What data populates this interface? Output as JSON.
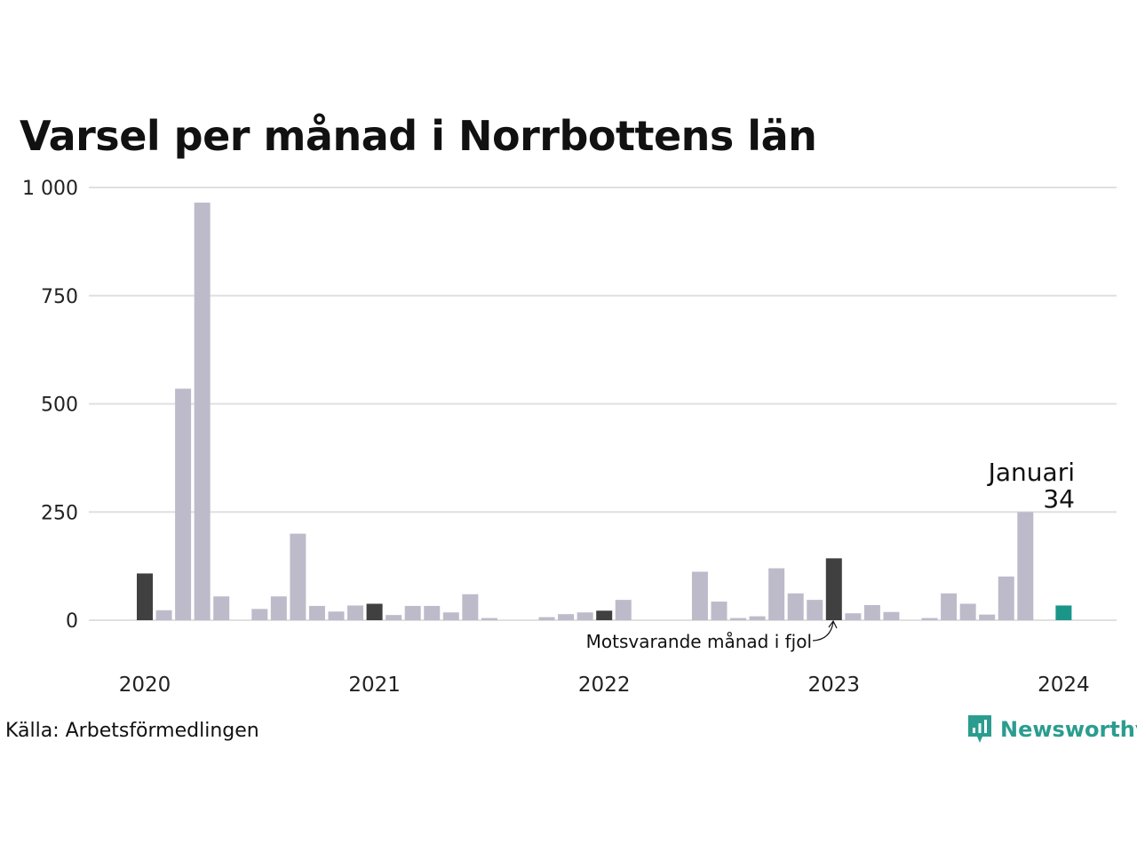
{
  "title": "Varsel per månad i Norrbottens län",
  "source": "Källa: Arbetsförmedlingen",
  "brand": "Newsworthy",
  "annotation": {
    "month_label": "Januari",
    "month_value": "34",
    "note": "Motsvarande månad i fjol"
  },
  "colors": {
    "bar_default": "#bdbbca",
    "bar_january": "#404040",
    "bar_latest": "#1a9688",
    "gridline": "#e0e0e0",
    "brand": "#2a9d8f"
  },
  "chart_data": {
    "type": "bar",
    "title": "Varsel per månad i Norrbottens län",
    "xlabel": "",
    "ylabel": "",
    "ylim": [
      0,
      1000
    ],
    "y_ticks": [
      0,
      250,
      500,
      750,
      1000
    ],
    "y_tick_labels": [
      "0",
      "250",
      "500",
      "750",
      "1 000"
    ],
    "x_tick_labels": [
      "2020",
      "2021",
      "2022",
      "2023",
      "2024"
    ],
    "grid": true,
    "legend": "none",
    "categories": [
      "2020-01",
      "2020-02",
      "2020-03",
      "2020-04",
      "2020-05",
      "2020-06",
      "2020-07",
      "2020-08",
      "2020-09",
      "2020-10",
      "2020-11",
      "2020-12",
      "2021-01",
      "2021-02",
      "2021-03",
      "2021-04",
      "2021-05",
      "2021-06",
      "2021-07",
      "2021-08",
      "2021-09",
      "2021-10",
      "2021-11",
      "2021-12",
      "2022-01",
      "2022-02",
      "2022-03",
      "2022-04",
      "2022-05",
      "2022-06",
      "2022-07",
      "2022-08",
      "2022-09",
      "2022-10",
      "2022-11",
      "2022-12",
      "2023-01",
      "2023-02",
      "2023-03",
      "2023-04",
      "2023-05",
      "2023-06",
      "2023-07",
      "2023-08",
      "2023-09",
      "2023-10",
      "2023-11",
      "2023-12",
      "2024-01"
    ],
    "values": [
      108,
      23,
      535,
      965,
      55,
      0,
      26,
      55,
      200,
      33,
      20,
      34,
      38,
      12,
      33,
      33,
      18,
      60,
      5,
      0,
      0,
      7,
      14,
      18,
      22,
      47,
      0,
      0,
      0,
      112,
      43,
      5,
      9,
      120,
      62,
      47,
      143,
      16,
      35,
      19,
      0,
      5,
      62,
      38,
      13,
      101,
      250,
      0,
      34
    ],
    "highlighted_january_indices": [
      0,
      12,
      24,
      36
    ],
    "latest_index": 48
  }
}
